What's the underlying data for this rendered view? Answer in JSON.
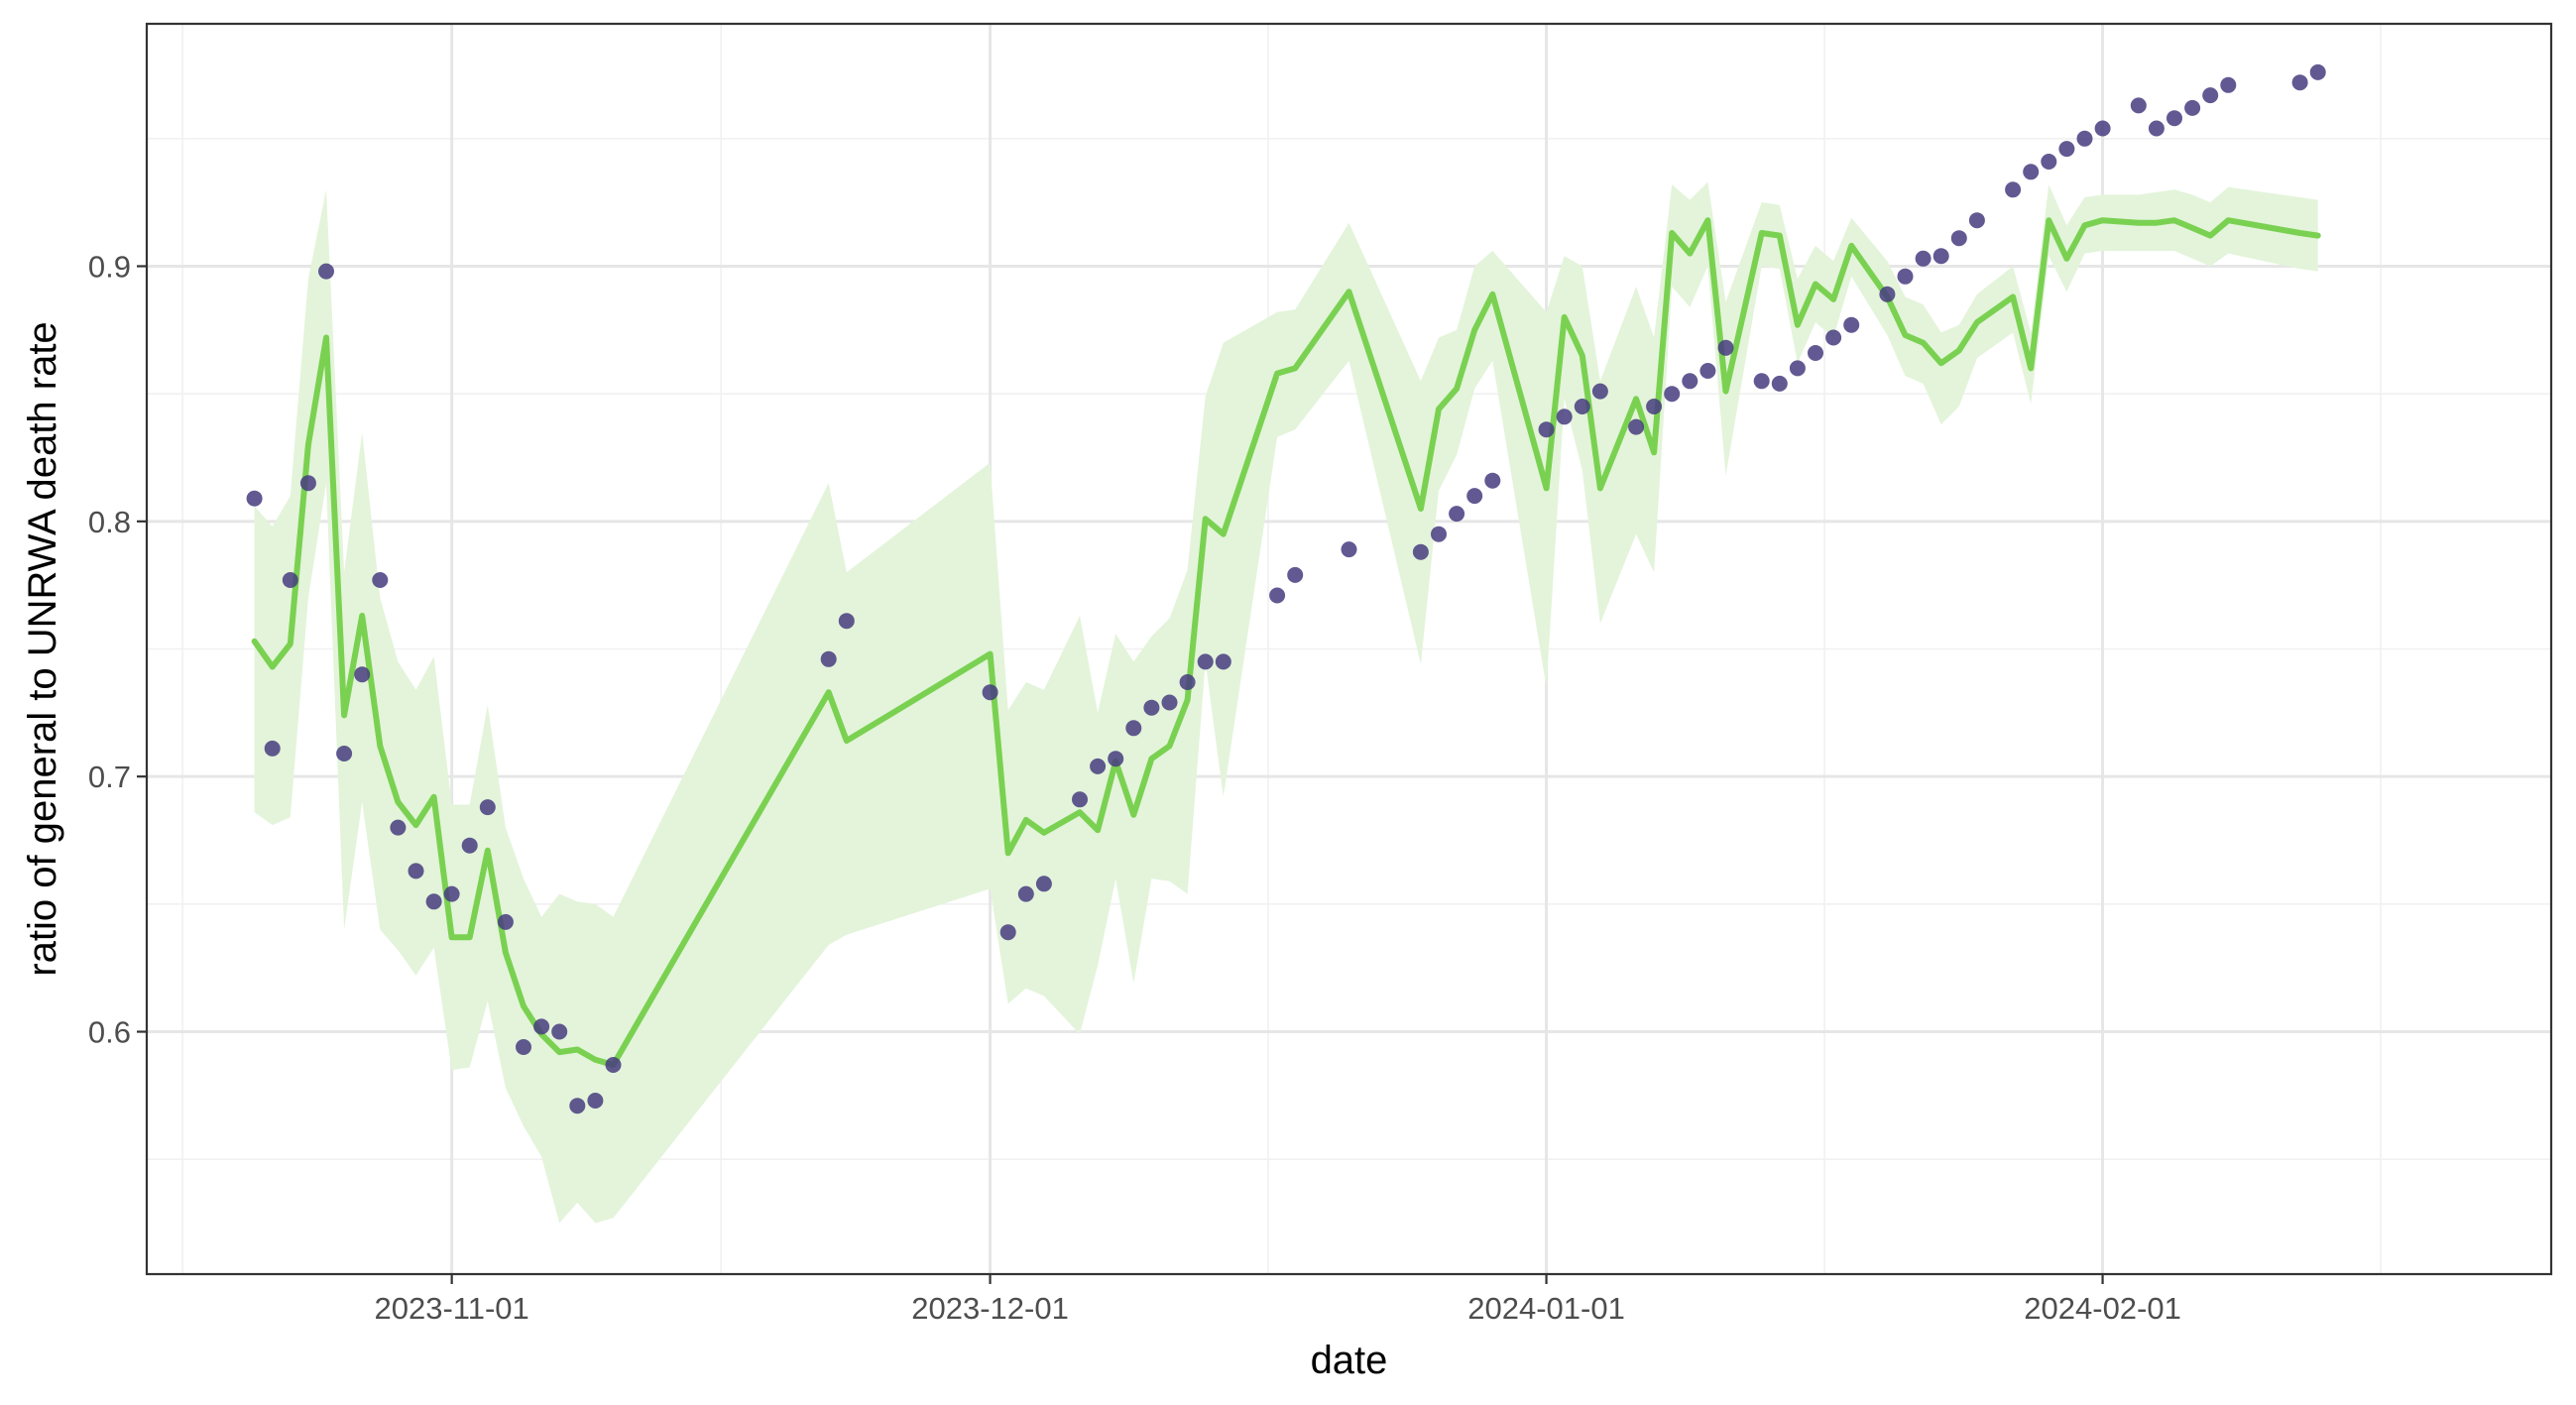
{
  "chart_data": {
    "type": "line",
    "xlabel": "date",
    "ylabel": "ratio of general to UNRWA death rate",
    "x_axis": {
      "type": "date",
      "range": [
        "2023-10-15",
        "2024-02-26"
      ],
      "ticks": [
        "2023-11-01",
        "2023-12-01",
        "2024-01-01",
        "2024-02-01"
      ]
    },
    "y_axis": {
      "range": [
        0.505,
        0.995
      ],
      "ticks": [
        0.6,
        0.7,
        0.8,
        0.9
      ],
      "tick_labels": [
        "0.6",
        "0.7",
        "0.8",
        "0.9"
      ]
    },
    "grid": true,
    "legend": "none",
    "colors": {
      "points": "#463c7f",
      "line": "#7ad151",
      "band": "#e3f4da",
      "panel_border": "#333333"
    },
    "points": [
      [
        "2023-10-21",
        0.809
      ],
      [
        "2023-10-22",
        0.711
      ],
      [
        "2023-10-23",
        0.777
      ],
      [
        "2023-10-24",
        0.815
      ],
      [
        "2023-10-25",
        0.898
      ],
      [
        "2023-10-26",
        0.709
      ],
      [
        "2023-10-27",
        0.74
      ],
      [
        "2023-10-28",
        0.777
      ],
      [
        "2023-10-29",
        0.68
      ],
      [
        "2023-10-30",
        0.663
      ],
      [
        "2023-10-31",
        0.651
      ],
      [
        "2023-11-01",
        0.654
      ],
      [
        "2023-11-02",
        0.673
      ],
      [
        "2023-11-03",
        0.688
      ],
      [
        "2023-11-04",
        0.643
      ],
      [
        "2023-11-05",
        0.594
      ],
      [
        "2023-11-06",
        0.602
      ],
      [
        "2023-11-07",
        0.6
      ],
      [
        "2023-11-08",
        0.571
      ],
      [
        "2023-11-09",
        0.573
      ],
      [
        "2023-11-10",
        0.587
      ],
      [
        "2023-11-22",
        0.746
      ],
      [
        "2023-11-23",
        0.761
      ],
      [
        "2023-12-01",
        0.733
      ],
      [
        "2023-12-02",
        0.639
      ],
      [
        "2023-12-03",
        0.654
      ],
      [
        "2023-12-04",
        0.658
      ],
      [
        "2023-12-06",
        0.691
      ],
      [
        "2023-12-07",
        0.704
      ],
      [
        "2023-12-08",
        0.707
      ],
      [
        "2023-12-09",
        0.719
      ],
      [
        "2023-12-10",
        0.727
      ],
      [
        "2023-12-11",
        0.729
      ],
      [
        "2023-12-12",
        0.737
      ],
      [
        "2023-12-13",
        0.745
      ],
      [
        "2023-12-14",
        0.745
      ],
      [
        "2023-12-17",
        0.771
      ],
      [
        "2023-12-18",
        0.779
      ],
      [
        "2023-12-21",
        0.789
      ],
      [
        "2023-12-25",
        0.788
      ],
      [
        "2023-12-26",
        0.795
      ],
      [
        "2023-12-27",
        0.803
      ],
      [
        "2023-12-28",
        0.81
      ],
      [
        "2023-12-29",
        0.816
      ],
      [
        "2024-01-01",
        0.836
      ],
      [
        "2024-01-02",
        0.841
      ],
      [
        "2024-01-03",
        0.845
      ],
      [
        "2024-01-04",
        0.851
      ],
      [
        "2024-01-06",
        0.837
      ],
      [
        "2024-01-07",
        0.845
      ],
      [
        "2024-01-08",
        0.85
      ],
      [
        "2024-01-09",
        0.855
      ],
      [
        "2024-01-10",
        0.859
      ],
      [
        "2024-01-11",
        0.868
      ],
      [
        "2024-01-13",
        0.855
      ],
      [
        "2024-01-14",
        0.854
      ],
      [
        "2024-01-15",
        0.86
      ],
      [
        "2024-01-16",
        0.866
      ],
      [
        "2024-01-17",
        0.872
      ],
      [
        "2024-01-18",
        0.877
      ],
      [
        "2024-01-20",
        0.889
      ],
      [
        "2024-01-21",
        0.896
      ],
      [
        "2024-01-22",
        0.903
      ],
      [
        "2024-01-23",
        0.904
      ],
      [
        "2024-01-24",
        0.911
      ],
      [
        "2024-01-25",
        0.918
      ],
      [
        "2024-01-27",
        0.93
      ],
      [
        "2024-01-28",
        0.937
      ],
      [
        "2024-01-29",
        0.941
      ],
      [
        "2024-01-30",
        0.946
      ],
      [
        "2024-01-31",
        0.95
      ],
      [
        "2024-02-01",
        0.954
      ],
      [
        "2024-02-03",
        0.963
      ],
      [
        "2024-02-04",
        0.954
      ],
      [
        "2024-02-05",
        0.958
      ],
      [
        "2024-02-06",
        0.962
      ],
      [
        "2024-02-07",
        0.967
      ],
      [
        "2024-02-08",
        0.971
      ],
      [
        "2024-02-12",
        0.972
      ],
      [
        "2024-02-13",
        0.976
      ]
    ],
    "fit_line": [
      [
        "2023-10-21",
        0.753
      ],
      [
        "2023-10-22",
        0.743
      ],
      [
        "2023-10-23",
        0.752
      ],
      [
        "2023-10-24",
        0.83
      ],
      [
        "2023-10-25",
        0.872
      ],
      [
        "2023-10-26",
        0.724
      ],
      [
        "2023-10-27",
        0.763
      ],
      [
        "2023-10-28",
        0.712
      ],
      [
        "2023-10-29",
        0.69
      ],
      [
        "2023-10-30",
        0.681
      ],
      [
        "2023-10-31",
        0.692
      ],
      [
        "2023-11-01",
        0.637
      ],
      [
        "2023-11-02",
        0.637
      ],
      [
        "2023-11-03",
        0.671
      ],
      [
        "2023-11-04",
        0.631
      ],
      [
        "2023-11-05",
        0.61
      ],
      [
        "2023-11-06",
        0.599
      ],
      [
        "2023-11-07",
        0.592
      ],
      [
        "2023-11-08",
        0.593
      ],
      [
        "2023-11-09",
        0.589
      ],
      [
        "2023-11-10",
        0.587
      ],
      [
        "2023-11-22",
        0.733
      ],
      [
        "2023-11-23",
        0.714
      ],
      [
        "2023-12-01",
        0.748
      ],
      [
        "2023-12-02",
        0.67
      ],
      [
        "2023-12-03",
        0.683
      ],
      [
        "2023-12-04",
        0.678
      ],
      [
        "2023-12-06",
        0.686
      ],
      [
        "2023-12-07",
        0.679
      ],
      [
        "2023-12-08",
        0.706
      ],
      [
        "2023-12-09",
        0.685
      ],
      [
        "2023-12-10",
        0.707
      ],
      [
        "2023-12-11",
        0.712
      ],
      [
        "2023-12-12",
        0.73
      ],
      [
        "2023-12-13",
        0.801
      ],
      [
        "2023-12-14",
        0.795
      ],
      [
        "2023-12-17",
        0.858
      ],
      [
        "2023-12-18",
        0.86
      ],
      [
        "2023-12-21",
        0.89
      ],
      [
        "2023-12-25",
        0.805
      ],
      [
        "2023-12-26",
        0.844
      ],
      [
        "2023-12-27",
        0.852
      ],
      [
        "2023-12-28",
        0.875
      ],
      [
        "2023-12-29",
        0.889
      ],
      [
        "2024-01-01",
        0.813
      ],
      [
        "2024-01-02",
        0.88
      ],
      [
        "2024-01-03",
        0.865
      ],
      [
        "2024-01-04",
        0.813
      ],
      [
        "2024-01-06",
        0.848
      ],
      [
        "2024-01-07",
        0.827
      ],
      [
        "2024-01-08",
        0.913
      ],
      [
        "2024-01-09",
        0.905
      ],
      [
        "2024-01-10",
        0.918
      ],
      [
        "2024-01-11",
        0.851
      ],
      [
        "2024-01-13",
        0.913
      ],
      [
        "2024-01-14",
        0.912
      ],
      [
        "2024-01-15",
        0.877
      ],
      [
        "2024-01-16",
        0.893
      ],
      [
        "2024-01-17",
        0.887
      ],
      [
        "2024-01-18",
        0.908
      ],
      [
        "2024-01-20",
        0.888
      ],
      [
        "2024-01-21",
        0.873
      ],
      [
        "2024-01-22",
        0.87
      ],
      [
        "2024-01-23",
        0.862
      ],
      [
        "2024-01-24",
        0.867
      ],
      [
        "2024-01-25",
        0.878
      ],
      [
        "2024-01-27",
        0.888
      ],
      [
        "2024-01-28",
        0.86
      ],
      [
        "2024-01-29",
        0.918
      ],
      [
        "2024-01-30",
        0.903
      ],
      [
        "2024-01-31",
        0.916
      ],
      [
        "2024-02-01",
        0.918
      ],
      [
        "2024-02-03",
        0.917
      ],
      [
        "2024-02-04",
        0.917
      ],
      [
        "2024-02-05",
        0.918
      ],
      [
        "2024-02-06",
        0.915
      ],
      [
        "2024-02-07",
        0.912
      ],
      [
        "2024-02-08",
        0.918
      ],
      [
        "2024-02-12",
        0.913
      ],
      [
        "2024-02-13",
        0.912
      ]
    ],
    "band_upper": [
      [
        "2023-10-21",
        0.806
      ],
      [
        "2023-10-22",
        0.798
      ],
      [
        "2023-10-23",
        0.81
      ],
      [
        "2023-10-24",
        0.895
      ],
      [
        "2023-10-25",
        0.93
      ],
      [
        "2023-10-26",
        0.78
      ],
      [
        "2023-10-27",
        0.835
      ],
      [
        "2023-10-28",
        0.77
      ],
      [
        "2023-10-29",
        0.745
      ],
      [
        "2023-10-30",
        0.734
      ],
      [
        "2023-10-31",
        0.747
      ],
      [
        "2023-11-01",
        0.689
      ],
      [
        "2023-11-02",
        0.689
      ],
      [
        "2023-11-03",
        0.728
      ],
      [
        "2023-11-04",
        0.68
      ],
      [
        "2023-11-05",
        0.66
      ],
      [
        "2023-11-06",
        0.645
      ],
      [
        "2023-11-07",
        0.654
      ],
      [
        "2023-11-08",
        0.651
      ],
      [
        "2023-11-09",
        0.65
      ],
      [
        "2023-11-10",
        0.645
      ],
      [
        "2023-11-22",
        0.815
      ],
      [
        "2023-11-23",
        0.78
      ],
      [
        "2023-12-01",
        0.823
      ],
      [
        "2023-12-02",
        0.726
      ],
      [
        "2023-12-03",
        0.737
      ],
      [
        "2023-12-04",
        0.734
      ],
      [
        "2023-12-06",
        0.763
      ],
      [
        "2023-12-07",
        0.725
      ],
      [
        "2023-12-08",
        0.756
      ],
      [
        "2023-12-09",
        0.745
      ],
      [
        "2023-12-10",
        0.755
      ],
      [
        "2023-12-11",
        0.762
      ],
      [
        "2023-12-12",
        0.781
      ],
      [
        "2023-12-13",
        0.849
      ],
      [
        "2023-12-14",
        0.87
      ],
      [
        "2023-12-17",
        0.882
      ],
      [
        "2023-12-18",
        0.883
      ],
      [
        "2023-12-21",
        0.917
      ],
      [
        "2023-12-25",
        0.855
      ],
      [
        "2023-12-26",
        0.872
      ],
      [
        "2023-12-27",
        0.875
      ],
      [
        "2023-12-28",
        0.9
      ],
      [
        "2023-12-29",
        0.906
      ],
      [
        "2024-01-01",
        0.882
      ],
      [
        "2024-01-02",
        0.904
      ],
      [
        "2024-01-03",
        0.9
      ],
      [
        "2024-01-04",
        0.855
      ],
      [
        "2024-01-06",
        0.892
      ],
      [
        "2024-01-07",
        0.872
      ],
      [
        "2024-01-08",
        0.932
      ],
      [
        "2024-01-09",
        0.926
      ],
      [
        "2024-01-10",
        0.933
      ],
      [
        "2024-01-11",
        0.886
      ],
      [
        "2024-01-13",
        0.925
      ],
      [
        "2024-01-14",
        0.924
      ],
      [
        "2024-01-15",
        0.895
      ],
      [
        "2024-01-16",
        0.908
      ],
      [
        "2024-01-17",
        0.902
      ],
      [
        "2024-01-18",
        0.919
      ],
      [
        "2024-01-20",
        0.902
      ],
      [
        "2024-01-21",
        0.888
      ],
      [
        "2024-01-22",
        0.885
      ],
      [
        "2024-01-23",
        0.874
      ],
      [
        "2024-01-24",
        0.877
      ],
      [
        "2024-01-25",
        0.889
      ],
      [
        "2024-01-27",
        0.9
      ],
      [
        "2024-01-28",
        0.874
      ],
      [
        "2024-01-29",
        0.932
      ],
      [
        "2024-01-30",
        0.916
      ],
      [
        "2024-01-31",
        0.927
      ],
      [
        "2024-02-01",
        0.928
      ],
      [
        "2024-02-03",
        0.928
      ],
      [
        "2024-02-04",
        0.929
      ],
      [
        "2024-02-05",
        0.93
      ],
      [
        "2024-02-06",
        0.928
      ],
      [
        "2024-02-07",
        0.925
      ],
      [
        "2024-02-08",
        0.931
      ],
      [
        "2024-02-12",
        0.927
      ],
      [
        "2024-02-13",
        0.926
      ]
    ],
    "band_lower": [
      [
        "2023-10-21",
        0.686
      ],
      [
        "2023-10-22",
        0.681
      ],
      [
        "2023-10-23",
        0.684
      ],
      [
        "2023-10-24",
        0.77
      ],
      [
        "2023-10-25",
        0.815
      ],
      [
        "2023-10-26",
        0.64
      ],
      [
        "2023-10-27",
        0.69
      ],
      [
        "2023-10-28",
        0.64
      ],
      [
        "2023-10-29",
        0.632
      ],
      [
        "2023-10-30",
        0.622
      ],
      [
        "2023-10-31",
        0.633
      ],
      [
        "2023-11-01",
        0.585
      ],
      [
        "2023-11-02",
        0.586
      ],
      [
        "2023-11-03",
        0.612
      ],
      [
        "2023-11-04",
        0.578
      ],
      [
        "2023-11-05",
        0.563
      ],
      [
        "2023-11-06",
        0.551
      ],
      [
        "2023-11-07",
        0.525
      ],
      [
        "2023-11-08",
        0.533
      ],
      [
        "2023-11-09",
        0.525
      ],
      [
        "2023-11-10",
        0.527
      ],
      [
        "2023-11-22",
        0.634
      ],
      [
        "2023-11-23",
        0.638
      ],
      [
        "2023-12-01",
        0.656
      ],
      [
        "2023-12-02",
        0.611
      ],
      [
        "2023-12-03",
        0.617
      ],
      [
        "2023-12-04",
        0.614
      ],
      [
        "2023-12-06",
        0.599
      ],
      [
        "2023-12-07",
        0.626
      ],
      [
        "2023-12-08",
        0.66
      ],
      [
        "2023-12-09",
        0.619
      ],
      [
        "2023-12-10",
        0.66
      ],
      [
        "2023-12-11",
        0.659
      ],
      [
        "2023-12-12",
        0.654
      ],
      [
        "2023-12-13",
        0.745
      ],
      [
        "2023-12-14",
        0.692
      ],
      [
        "2023-12-17",
        0.833
      ],
      [
        "2023-12-18",
        0.836
      ],
      [
        "2023-12-21",
        0.863
      ],
      [
        "2023-12-25",
        0.744
      ],
      [
        "2023-12-26",
        0.812
      ],
      [
        "2023-12-27",
        0.826
      ],
      [
        "2023-12-28",
        0.852
      ],
      [
        "2023-12-29",
        0.863
      ],
      [
        "2024-01-01",
        0.735
      ],
      [
        "2024-01-02",
        0.848
      ],
      [
        "2024-01-03",
        0.82
      ],
      [
        "2024-01-04",
        0.76
      ],
      [
        "2024-01-06",
        0.795
      ],
      [
        "2024-01-07",
        0.78
      ],
      [
        "2024-01-08",
        0.892
      ],
      [
        "2024-01-09",
        0.884
      ],
      [
        "2024-01-10",
        0.9
      ],
      [
        "2024-01-11",
        0.818
      ],
      [
        "2024-01-13",
        0.9
      ],
      [
        "2024-01-14",
        0.899
      ],
      [
        "2024-01-15",
        0.862
      ],
      [
        "2024-01-16",
        0.878
      ],
      [
        "2024-01-17",
        0.872
      ],
      [
        "2024-01-18",
        0.896
      ],
      [
        "2024-01-20",
        0.873
      ],
      [
        "2024-01-21",
        0.857
      ],
      [
        "2024-01-22",
        0.854
      ],
      [
        "2024-01-23",
        0.838
      ],
      [
        "2024-01-24",
        0.845
      ],
      [
        "2024-01-25",
        0.864
      ],
      [
        "2024-01-27",
        0.874
      ],
      [
        "2024-01-28",
        0.846
      ],
      [
        "2024-01-29",
        0.904
      ],
      [
        "2024-01-30",
        0.89
      ],
      [
        "2024-01-31",
        0.905
      ],
      [
        "2024-02-01",
        0.906
      ],
      [
        "2024-02-03",
        0.906
      ],
      [
        "2024-02-04",
        0.906
      ],
      [
        "2024-02-05",
        0.906
      ],
      [
        "2024-02-06",
        0.903
      ],
      [
        "2024-02-07",
        0.9
      ],
      [
        "2024-02-08",
        0.905
      ],
      [
        "2024-02-12",
        0.899
      ],
      [
        "2024-02-13",
        0.898
      ]
    ]
  }
}
